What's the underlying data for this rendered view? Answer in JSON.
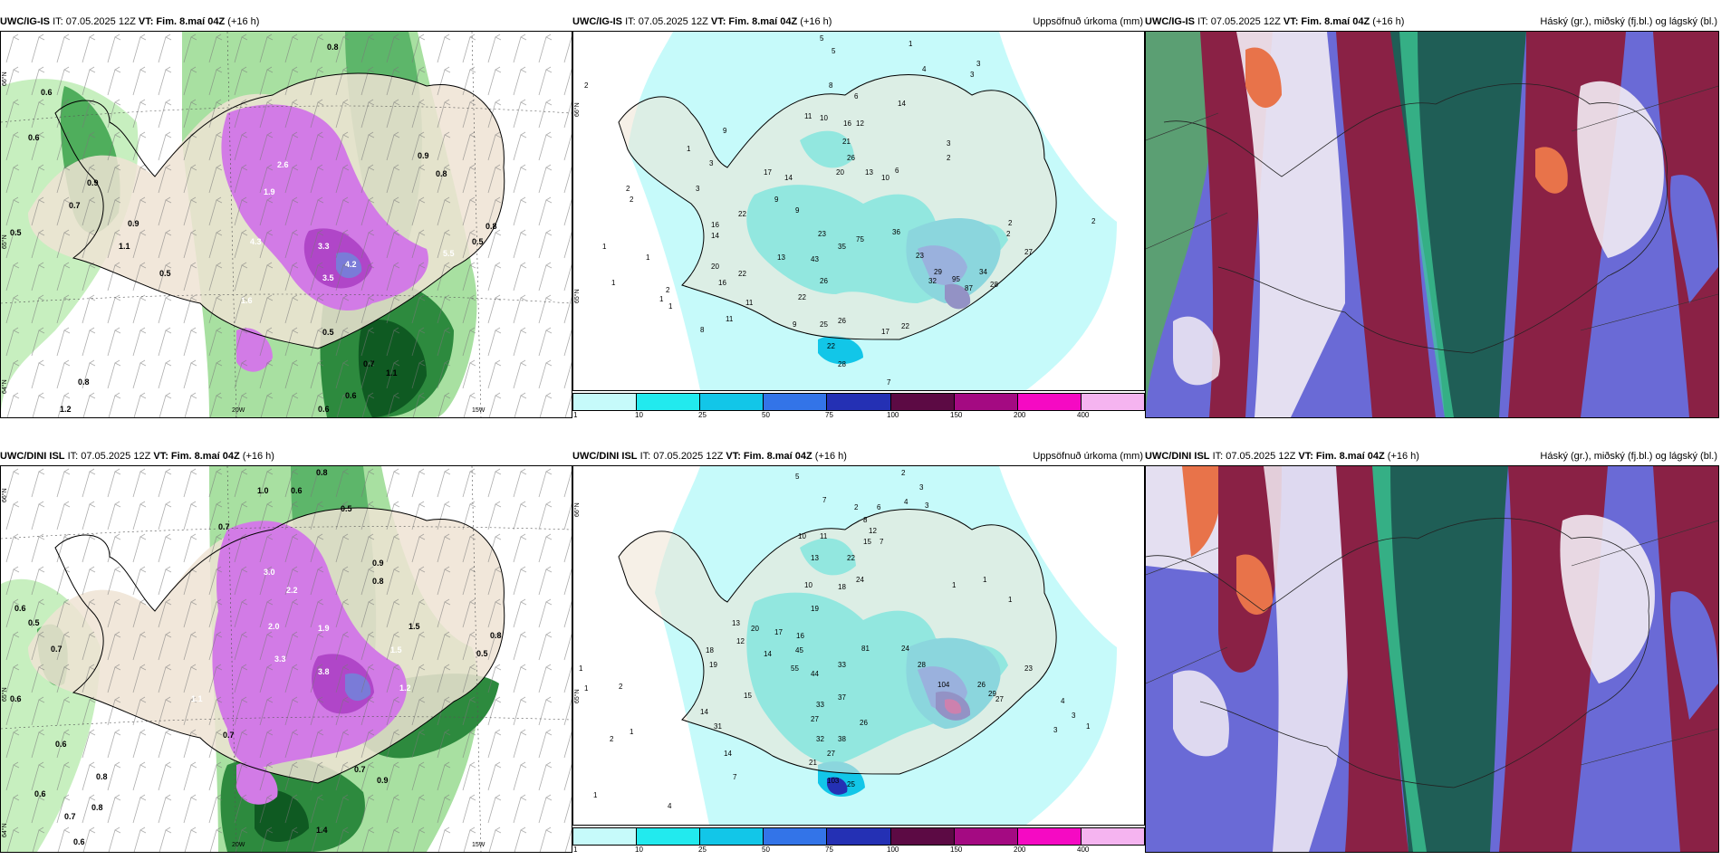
{
  "rows": [
    {
      "panels": [
        {
          "model": "UWC/IG-IS",
          "it": "IT: 07.05.2025 12Z",
          "vt_label": "VT:",
          "vt": "Fim. 8.maí 04Z",
          "lead": "(+16 h)",
          "right": ""
        },
        {
          "model": "UWC/IG-IS",
          "it": "IT: 07.05.2025 12Z",
          "vt_label": "VT:",
          "vt": "Fim. 8.maí 04Z",
          "lead": "(+16 h)",
          "right": "Uppsöfnuð úrkoma (mm)"
        },
        {
          "model": "UWC/IG-IS",
          "it": "IT: 07.05.2025 12Z",
          "vt_label": "VT:",
          "vt": "Fim. 8.maí 04Z",
          "lead": "(+16 h)",
          "right": "Háský (gr.), miðský (fj.bl.) og lágský (bl.)"
        }
      ]
    },
    {
      "panels": [
        {
          "model": "UWC/DINI ISL",
          "it": "IT: 07.05.2025 12Z",
          "vt_label": "VT:",
          "vt": "Fim. 8.maí 04Z",
          "lead": "(+16 h)",
          "right": ""
        },
        {
          "model": "UWC/DINI ISL",
          "it": "IT: 07.05.2025 12Z",
          "vt_label": "VT:",
          "vt": "Fim. 8.maí 04Z",
          "lead": "(+16 h)",
          "right": "Uppsöfnuð úrkoma (mm)"
        },
        {
          "model": "UWC/DINI ISL",
          "it": "IT: 07.05.2025 12Z",
          "vt_label": "VT:",
          "vt": "Fim. 8.maí 04Z",
          "lead": "(+16 h)",
          "right": "Háský (gr.), miðský (fj.bl.) og lágský (bl.)"
        }
      ]
    }
  ],
  "axes": {
    "lon_20": "20W",
    "lon_15": "15W",
    "lat_66": "66°N",
    "lat_65": "65°N",
    "lat_64": "64°N"
  },
  "colorbar": {
    "ticks": [
      "1",
      "10",
      "25",
      "50",
      "75",
      "100",
      "150",
      "200",
      "400"
    ],
    "colors": [
      "#c6fafa",
      "#22eaee",
      "#12c6e8",
      "#3374e8",
      "#2430b4",
      "#5c0a44",
      "#a40a82",
      "#f50ac3",
      "#f5b4f0"
    ]
  },
  "precip_labels_top": [
    "5",
    "5",
    "1",
    "4",
    "3",
    "3",
    "8",
    "6",
    "14",
    "11",
    "10",
    "16",
    "12",
    "2",
    "9",
    "1",
    "3",
    "3",
    "17",
    "14",
    "21",
    "26",
    "20",
    "13",
    "10",
    "6",
    "2",
    "3",
    "22",
    "9",
    "9",
    "16",
    "14",
    "23",
    "35",
    "75",
    "36",
    "13",
    "43",
    "20",
    "23",
    "29",
    "95",
    "34",
    "2",
    "27",
    "16",
    "22",
    "26",
    "22",
    "32",
    "87",
    "28",
    "9",
    "25",
    "26",
    "17",
    "22",
    "22",
    "11",
    "11",
    "8",
    "28",
    "7",
    "2",
    "1",
    "1",
    "1",
    "1",
    "2",
    "2",
    "2",
    "2",
    "1"
  ],
  "precip_labels_bottom": [
    "5",
    "2",
    "3",
    "7",
    "6",
    "4",
    "3",
    "2",
    "8",
    "12",
    "10",
    "11",
    "13",
    "22",
    "18",
    "1",
    "24",
    "15",
    "7",
    "10",
    "19",
    "16",
    "13",
    "17",
    "20",
    "14",
    "12",
    "18",
    "45",
    "81",
    "24",
    "55",
    "104",
    "27",
    "26",
    "29",
    "28",
    "23",
    "44",
    "33",
    "19",
    "15",
    "14",
    "31",
    "27",
    "33",
    "37",
    "26",
    "32",
    "38",
    "27",
    "21",
    "14",
    "103",
    "25",
    "7",
    "4",
    "1",
    "2",
    "1",
    "1",
    "2",
    "1",
    "4",
    "3",
    "3",
    "1",
    "1",
    "1"
  ],
  "prate_labels_top": [
    "0.6",
    "0.6",
    "0.9",
    "0.8",
    "0.7",
    "0.5",
    "0.5",
    "1.1",
    "0.9",
    "2.6",
    "1.9",
    "3.3",
    "4.3",
    "4.2",
    "3.5",
    "1.6",
    "5.5",
    "0.8",
    "0.5",
    "0.8",
    "0.6",
    "0.7",
    "0.5",
    "1.1",
    "0.6",
    "1.2",
    "0.9",
    "0.8"
  ],
  "prate_labels_bottom": [
    "1.0",
    "0.6",
    "0.8",
    "0.5",
    "0.7",
    "1.5",
    "2.0",
    "3.3",
    "3.0",
    "2.2",
    "1.9",
    "0.9",
    "0.8",
    "0.6",
    "0.7",
    "0.5",
    "0.8",
    "1.5",
    "0.6",
    "0.5",
    "1.1",
    "0.7",
    "0.6",
    "0.8",
    "3.8",
    "1.2",
    "0.9",
    "0.8",
    "1.4",
    "0.6",
    "0.7",
    "0.7",
    "0.6"
  ]
}
